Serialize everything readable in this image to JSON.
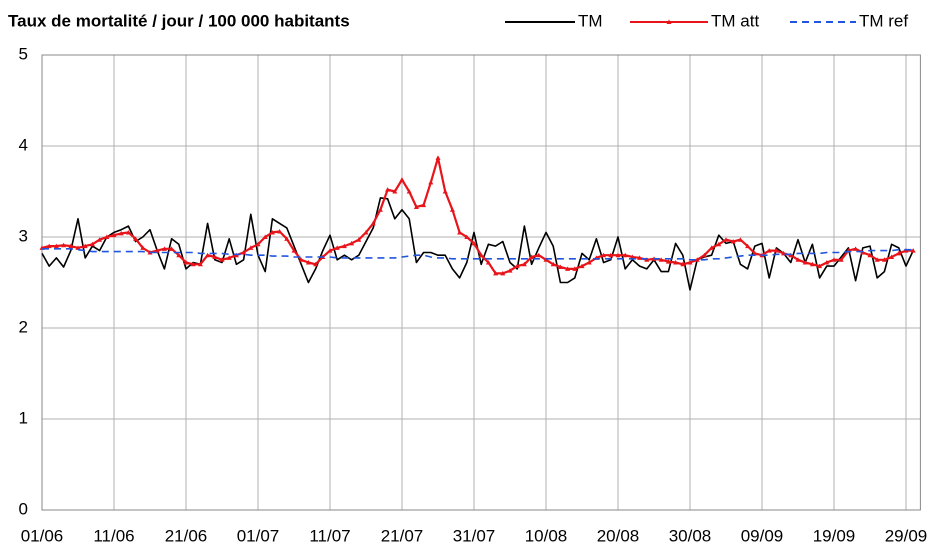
{
  "chart_data": {
    "type": "line",
    "title": "Taux de mortalité / jour / 100 000 habitants",
    "categories": [
      "01/06",
      null,
      null,
      null,
      null,
      null,
      null,
      null,
      null,
      null,
      "11/06",
      null,
      null,
      null,
      null,
      null,
      null,
      null,
      null,
      null,
      "21/06",
      null,
      null,
      null,
      null,
      null,
      null,
      null,
      null,
      null,
      "01/07",
      null,
      null,
      null,
      null,
      null,
      null,
      null,
      null,
      null,
      "11/07",
      null,
      null,
      null,
      null,
      null,
      null,
      null,
      null,
      null,
      "21/07",
      null,
      null,
      null,
      null,
      null,
      null,
      null,
      null,
      null,
      "31/07",
      null,
      null,
      null,
      null,
      null,
      null,
      null,
      null,
      null,
      "10/08",
      null,
      null,
      null,
      null,
      null,
      null,
      null,
      null,
      null,
      "20/08",
      null,
      null,
      null,
      null,
      null,
      null,
      null,
      null,
      null,
      "30/08",
      null,
      null,
      null,
      null,
      null,
      null,
      null,
      null,
      null,
      "09/09",
      null,
      null,
      null,
      null,
      null,
      null,
      null,
      null,
      null,
      "19/09",
      null,
      null,
      null,
      null,
      null,
      null,
      null,
      null,
      null,
      "29/09",
      null
    ],
    "series": [
      {
        "name": "TM",
        "color": "#000000",
        "values": [
          2.82,
          2.68,
          2.77,
          2.67,
          2.85,
          3.2,
          2.77,
          2.9,
          2.85,
          3.0,
          3.05,
          3.08,
          3.12,
          2.95,
          3.0,
          3.08,
          2.85,
          2.65,
          2.98,
          2.92,
          2.65,
          2.72,
          2.7,
          3.15,
          2.75,
          2.72,
          2.98,
          2.7,
          2.75,
          3.25,
          2.8,
          2.62,
          3.2,
          3.15,
          3.1,
          2.9,
          2.7,
          2.5,
          2.65,
          2.85,
          3.02,
          2.75,
          2.8,
          2.75,
          2.8,
          2.95,
          3.1,
          3.43,
          3.42,
          3.2,
          3.3,
          3.2,
          2.72,
          2.83,
          2.83,
          2.8,
          2.8,
          2.65,
          2.55,
          2.72,
          3.05,
          2.7,
          2.92,
          2.9,
          2.95,
          2.72,
          2.65,
          3.12,
          2.7,
          2.88,
          3.05,
          2.9,
          2.5,
          2.5,
          2.55,
          2.82,
          2.75,
          2.98,
          2.72,
          2.75,
          3.0,
          2.65,
          2.75,
          2.68,
          2.65,
          2.75,
          2.62,
          2.62,
          2.93,
          2.8,
          2.42,
          2.75,
          2.78,
          2.8,
          3.02,
          2.93,
          2.95,
          2.7,
          2.65,
          2.9,
          2.93,
          2.55,
          2.88,
          2.82,
          2.72,
          2.97,
          2.72,
          2.92,
          2.55,
          2.68,
          2.68,
          2.78,
          2.88,
          2.52,
          2.88,
          2.9,
          2.55,
          2.62,
          2.92,
          2.88,
          2.68,
          2.85
        ]
      },
      {
        "name": "TM att",
        "color": "#e8141a",
        "values": [
          2.88,
          2.9,
          2.9,
          2.91,
          2.9,
          2.88,
          2.9,
          2.92,
          2.97,
          3.0,
          3.02,
          3.04,
          3.05,
          2.98,
          2.88,
          2.83,
          2.85,
          2.87,
          2.87,
          2.8,
          2.72,
          2.7,
          2.7,
          2.8,
          2.78,
          2.75,
          2.77,
          2.8,
          2.83,
          2.88,
          2.92,
          3.0,
          3.05,
          3.06,
          2.98,
          2.85,
          2.75,
          2.72,
          2.7,
          2.78,
          2.85,
          2.88,
          2.9,
          2.93,
          2.97,
          3.05,
          3.15,
          3.3,
          3.52,
          3.5,
          3.63,
          3.5,
          3.33,
          3.35,
          3.6,
          3.87,
          3.5,
          3.3,
          3.05,
          3.0,
          2.93,
          2.8,
          2.72,
          2.6,
          2.6,
          2.63,
          2.68,
          2.7,
          2.78,
          2.8,
          2.75,
          2.7,
          2.67,
          2.65,
          2.65,
          2.68,
          2.72,
          2.77,
          2.8,
          2.8,
          2.8,
          2.8,
          2.78,
          2.77,
          2.75,
          2.76,
          2.75,
          2.73,
          2.72,
          2.7,
          2.72,
          2.75,
          2.8,
          2.88,
          2.92,
          2.97,
          2.95,
          2.97,
          2.9,
          2.82,
          2.8,
          2.85,
          2.85,
          2.82,
          2.8,
          2.75,
          2.72,
          2.7,
          2.68,
          2.72,
          2.75,
          2.75,
          2.85,
          2.87,
          2.83,
          2.8,
          2.75,
          2.75,
          2.78,
          2.82,
          2.85,
          2.85
        ]
      },
      {
        "name": "TM ref",
        "color": "#2255dd",
        "values": [
          2.87,
          2.87,
          2.87,
          2.87,
          2.87,
          2.86,
          2.85,
          2.84,
          2.84,
          2.84,
          2.84,
          2.84,
          2.84,
          2.84,
          2.84,
          2.83,
          2.83,
          2.83,
          2.83,
          2.83,
          2.83,
          2.83,
          2.82,
          2.82,
          2.82,
          2.82,
          2.81,
          2.81,
          2.81,
          2.8,
          2.8,
          2.8,
          2.79,
          2.79,
          2.79,
          2.78,
          2.78,
          2.78,
          2.78,
          2.78,
          2.78,
          2.77,
          2.77,
          2.77,
          2.77,
          2.77,
          2.77,
          2.77,
          2.77,
          2.77,
          2.78,
          2.79,
          2.8,
          2.8,
          2.78,
          2.77,
          2.77,
          2.76,
          2.76,
          2.76,
          2.76,
          2.76,
          2.76,
          2.76,
          2.76,
          2.76,
          2.76,
          2.76,
          2.76,
          2.76,
          2.76,
          2.76,
          2.76,
          2.76,
          2.76,
          2.76,
          2.76,
          2.76,
          2.76,
          2.76,
          2.76,
          2.76,
          2.76,
          2.76,
          2.76,
          2.76,
          2.76,
          2.76,
          2.76,
          2.76,
          2.75,
          2.75,
          2.75,
          2.76,
          2.76,
          2.77,
          2.78,
          2.79,
          2.8,
          2.8,
          2.8,
          2.8,
          2.81,
          2.81,
          2.81,
          2.82,
          2.82,
          2.82,
          2.82,
          2.83,
          2.83,
          2.83,
          2.84,
          2.84,
          2.84,
          2.85,
          2.85,
          2.85,
          2.85,
          2.86,
          2.86,
          2.86
        ],
        "dashed": true
      }
    ],
    "ylim": [
      0,
      5
    ],
    "yticks": [
      0,
      1,
      2,
      3,
      4,
      5
    ],
    "grid": true
  }
}
